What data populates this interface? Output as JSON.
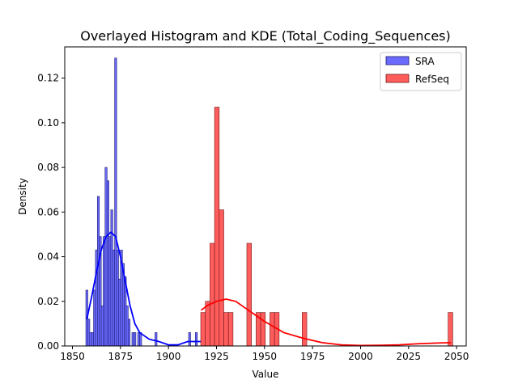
{
  "chart_data": {
    "type": "bar",
    "title": "Overlayed Histogram and KDE (Total_Coding_Sequences)",
    "xlabel": "Value",
    "ylabel": "Density",
    "xlim": [
      1846,
      2055
    ],
    "ylim": [
      0,
      0.134
    ],
    "xticks": [
      1850,
      1875,
      1900,
      1925,
      1950,
      1975,
      2000,
      2025,
      2050
    ],
    "yticks": [
      0.0,
      0.02,
      0.04,
      0.06,
      0.08,
      0.1,
      0.12
    ],
    "ytick_labels": [
      "0.00",
      "0.02",
      "0.04",
      "0.06",
      "0.08",
      "0.10",
      "0.12"
    ],
    "legend_position": "top-right",
    "grid": false,
    "series": [
      {
        "name": "SRA",
        "fill": "#6b6bff",
        "edge": "#1a1a6e",
        "kde_color": "#0000ff",
        "bin_width": 1.05,
        "bins": [
          [
            1857.5,
            0.025
          ],
          [
            1858.5,
            0.012
          ],
          [
            1859.5,
            0.006
          ],
          [
            1860.5,
            0.006
          ],
          [
            1861.5,
            0.025
          ],
          [
            1862.5,
            0.043
          ],
          [
            1863.5,
            0.067
          ],
          [
            1864.5,
            0.049
          ],
          [
            1865.5,
            0.018
          ],
          [
            1866.5,
            0.049
          ],
          [
            1867.5,
            0.08
          ],
          [
            1868.5,
            0.074
          ],
          [
            1869.5,
            0.049
          ],
          [
            1870.5,
            0.061
          ],
          [
            1871.5,
            0.043
          ],
          [
            1872.5,
            0.129
          ],
          [
            1873.5,
            0.043
          ],
          [
            1874.5,
            0.03
          ],
          [
            1875.5,
            0.043
          ],
          [
            1876.5,
            0.037
          ],
          [
            1877.5,
            0.031
          ],
          [
            1878.5,
            0.018
          ],
          [
            1879.5,
            0.012
          ],
          [
            1881.5,
            0.006
          ],
          [
            1882.5,
            0.006
          ],
          [
            1884.5,
            0.006
          ],
          [
            1885.5,
            0.006
          ],
          [
            1893.5,
            0.006
          ],
          [
            1911.0,
            0.006
          ],
          [
            1914.5,
            0.006
          ],
          [
            1917.5,
            0.012
          ]
        ],
        "kde_x": [
          1857.5,
          1860,
          1862.5,
          1865,
          1867.5,
          1870,
          1872.5,
          1875,
          1877.5,
          1880,
          1882.5,
          1885,
          1890,
          1895,
          1900,
          1905,
          1910,
          1915,
          1919
        ],
        "kde_y": [
          0.012,
          0.022,
          0.033,
          0.043,
          0.049,
          0.051,
          0.049,
          0.04,
          0.029,
          0.018,
          0.01,
          0.006,
          0.003,
          0.002,
          0.0005,
          0.0005,
          0.002,
          0.002,
          0.002
        ]
      },
      {
        "name": "RefSeq",
        "fill": "#ff5c5c",
        "edge": "#6e1a1a",
        "kde_color": "#ff0000",
        "bin_width": 2.4,
        "bins": [
          [
            1918.0,
            0.015
          ],
          [
            1920.4,
            0.02
          ],
          [
            1922.8,
            0.046
          ],
          [
            1925.2,
            0.107
          ],
          [
            1927.6,
            0.061
          ],
          [
            1930.0,
            0.015
          ],
          [
            1932.4,
            0.015
          ],
          [
            1942.0,
            0.046
          ],
          [
            1946.8,
            0.015
          ],
          [
            1949.2,
            0.015
          ],
          [
            1954.0,
            0.015
          ],
          [
            1956.4,
            0.015
          ],
          [
            1970.8,
            0.015
          ],
          [
            2046.8,
            0.015
          ]
        ],
        "kde_x": [
          1917,
          1920,
          1925,
          1930,
          1935,
          1940,
          1945,
          1950,
          1960,
          1970,
          1980,
          1990,
          2000,
          2010,
          2020,
          2030,
          2040,
          2047
        ],
        "kde_y": [
          0.016,
          0.018,
          0.02,
          0.021,
          0.02,
          0.017,
          0.014,
          0.011,
          0.006,
          0.0035,
          0.0015,
          0.0005,
          0.0002,
          0.0003,
          0.0005,
          0.001,
          0.0013,
          0.0015
        ]
      }
    ]
  }
}
